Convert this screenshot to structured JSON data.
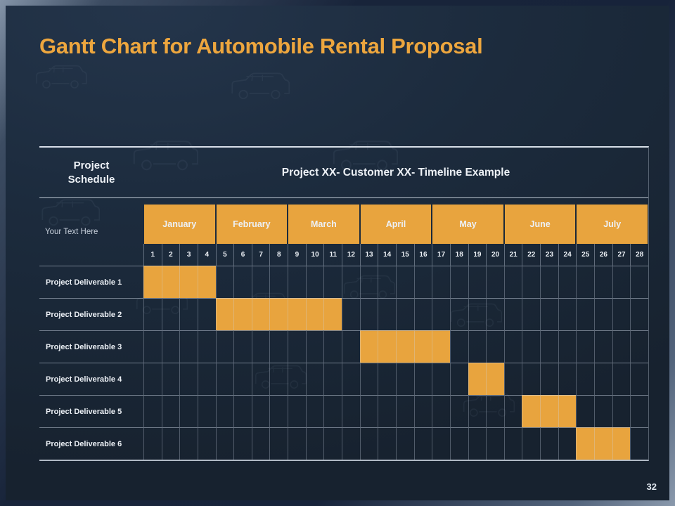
{
  "slide": {
    "title": "Gantt Chart for Automobile Rental Proposal",
    "page_number": "32"
  },
  "colors": {
    "title_orange": "#EDA63E",
    "accent_orange": "#E8A43E",
    "background_navy": "#1C2B3D"
  },
  "gantt": {
    "schedule_header": "Project Schedule",
    "left_subheader": "Your Text Here",
    "week_labels": [
      "1",
      "2",
      "3",
      "4",
      "5",
      "6",
      "7",
      "8",
      "9",
      "10",
      "11",
      "12",
      "13",
      "14",
      "15",
      "16",
      "17",
      "18",
      "19",
      "20",
      "21",
      "22",
      "23",
      "24",
      "25",
      "26",
      "27",
      "28"
    ]
  },
  "chart_data": {
    "type": "bar",
    "variant": "gantt",
    "title": "Project XX- Customer XX- Timeline Example",
    "x_unit": "week",
    "x_range": [
      1,
      28
    ],
    "grid": true,
    "legend": "none",
    "bar_color": "#E8A43E",
    "months": [
      {
        "name": "January",
        "weeks": [
          1,
          4
        ]
      },
      {
        "name": "February",
        "weeks": [
          5,
          8
        ]
      },
      {
        "name": "March",
        "weeks": [
          9,
          12
        ]
      },
      {
        "name": "April",
        "weeks": [
          13,
          16
        ]
      },
      {
        "name": "May",
        "weeks": [
          17,
          20
        ]
      },
      {
        "name": "June",
        "weeks": [
          21,
          24
        ]
      },
      {
        "name": "July",
        "weeks": [
          25,
          28
        ]
      }
    ],
    "tasks": [
      {
        "name": "Project Deliverable 1",
        "start_week": 1,
        "end_week": 4
      },
      {
        "name": "Project Deliverable 2",
        "start_week": 5,
        "end_week": 11
      },
      {
        "name": "Project Deliverable 3",
        "start_week": 13,
        "end_week": 17
      },
      {
        "name": "Project Deliverable 4",
        "start_week": 19,
        "end_week": 20
      },
      {
        "name": "Project Deliverable 5",
        "start_week": 22,
        "end_week": 24
      },
      {
        "name": "Project Deliverable 6",
        "start_week": 25,
        "end_week": 27
      }
    ]
  }
}
